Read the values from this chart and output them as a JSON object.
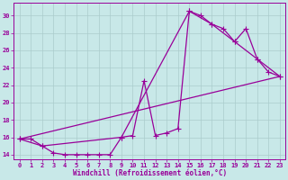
{
  "xlabel": "Windchill (Refroidissement éolien,°C)",
  "bg_color": "#c8e8e8",
  "grid_color": "#aacccc",
  "line_color": "#990099",
  "xlim": [
    -0.5,
    23.5
  ],
  "ylim": [
    13.5,
    31.5
  ],
  "xticks": [
    0,
    1,
    2,
    3,
    4,
    5,
    6,
    7,
    8,
    9,
    10,
    11,
    12,
    13,
    14,
    15,
    16,
    17,
    18,
    19,
    20,
    21,
    22,
    23
  ],
  "yticks": [
    14,
    16,
    18,
    20,
    22,
    24,
    26,
    28,
    30
  ],
  "line1_x": [
    0,
    1,
    2,
    3,
    4,
    5,
    6,
    7,
    8,
    9,
    10,
    11,
    12,
    13,
    14,
    15,
    16,
    17,
    18,
    19,
    20,
    21,
    22,
    23
  ],
  "line1_y": [
    15.8,
    15.8,
    15.0,
    14.2,
    14.0,
    14.0,
    14.0,
    14.0,
    14.0,
    16.0,
    16.2,
    22.5,
    16.2,
    16.5,
    17.0,
    30.5,
    30.0,
    29.0,
    28.5,
    27.0,
    28.5,
    25.0,
    23.5,
    23.0
  ],
  "line3_x": [
    0,
    23
  ],
  "line3_y": [
    15.8,
    23.0
  ],
  "line4_x": [
    0,
    2,
    9,
    15,
    17,
    19,
    21,
    23
  ],
  "line4_y": [
    15.8,
    15.0,
    16.0,
    30.5,
    29.0,
    27.0,
    25.0,
    23.0
  ]
}
